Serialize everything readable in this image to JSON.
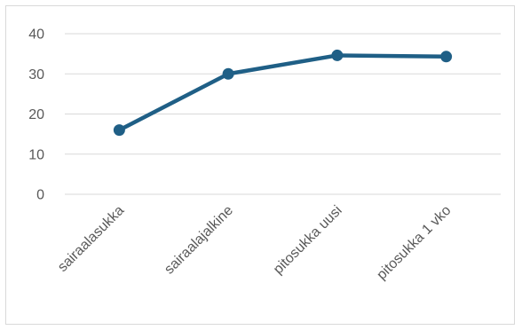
{
  "chart_data": {
    "type": "line",
    "categories": [
      "sairaalasukka",
      "sairaalajalkine",
      "pitosukka uusi",
      "pitosukka 1 vko"
    ],
    "series": [
      {
        "values": [
          16,
          30,
          34.6,
          34.3
        ]
      }
    ],
    "ylim": [
      0,
      40
    ],
    "yticks": [
      0,
      10,
      20,
      30,
      40
    ],
    "grid": true,
    "legend": "none",
    "colors": {
      "series": "#1f5f86",
      "grid": "#d9d9d9",
      "tick_text": "#595959"
    }
  }
}
